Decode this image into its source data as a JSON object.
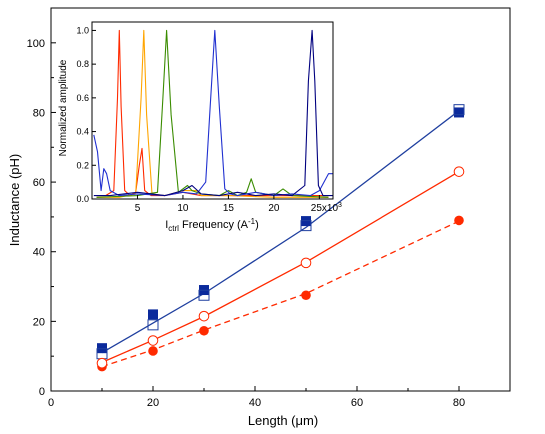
{
  "chart_data": [
    {
      "type": "scatter",
      "xlabel_main": "Length (",
      "xlabel_mu": "μ",
      "xlabel_end": "m)",
      "ylabel": "Inductance (pH)",
      "xlim": [
        0,
        90
      ],
      "ylim": [
        0,
        110
      ],
      "xticks": [
        "0",
        "20",
        "40",
        "60",
        "80"
      ],
      "yticks": [
        "0",
        "20",
        "40",
        "60",
        "80",
        "100"
      ],
      "colors": {
        "blue": "#1f3f9f",
        "navy": "#00007f",
        "red": "#ff2a00"
      },
      "series": [
        {
          "marker": "filled-square",
          "color": "#0b2a9c",
          "x": [
            10,
            20,
            30,
            50,
            80
          ],
          "y": [
            12.3,
            22.0,
            29.0,
            48.8,
            80.0
          ]
        },
        {
          "marker": "open-square",
          "color": "#1f3f9f",
          "fit": "solid",
          "x": [
            10,
            20,
            30,
            50,
            80
          ],
          "y": [
            10.7,
            19.0,
            27.5,
            47.5,
            80.8
          ]
        },
        {
          "marker": "open-circle",
          "color": "#ff2a00",
          "fit": "solid",
          "x": [
            10,
            20,
            30,
            50,
            80
          ],
          "y": [
            8.0,
            14.5,
            21.5,
            36.8,
            63.0
          ]
        },
        {
          "marker": "filled-circle",
          "color": "#ff2a00",
          "fit": "dashed",
          "x": [
            10,
            20,
            30,
            50,
            80
          ],
          "y": [
            7.0,
            11.5,
            17.3,
            27.5,
            49.0
          ]
        }
      ],
      "fit_lines": [
        {
          "color": "#1f3f9f",
          "style": "solid",
          "x": [
            10,
            20,
            30,
            50,
            80
          ],
          "y": [
            11.0,
            19.5,
            28.0,
            47.0,
            80.5
          ]
        },
        {
          "color": "#ff2a00",
          "style": "solid",
          "x": [
            10,
            20,
            30,
            50,
            80
          ],
          "y": [
            8.2,
            14.6,
            21.4,
            37.0,
            63.0
          ]
        },
        {
          "color": "#ff2a00",
          "style": "dashed",
          "x": [
            10,
            20,
            30,
            50,
            80
          ],
          "y": [
            7.0,
            11.8,
            17.5,
            28.0,
            48.8
          ]
        }
      ]
    },
    {
      "type": "line",
      "ylabel": "Normalized amplitude",
      "xlabel_pre": "I",
      "xlabel_sub": "ctrl",
      "xlabel_mid": " Frequency (A",
      "xlabel_sup": "-1",
      "xlabel_end": ")",
      "xlim": [
        0,
        26.5
      ],
      "ylim": [
        0,
        1.05
      ],
      "xticks": [
        "5",
        "10",
        "15",
        "20",
        "25x10"
      ],
      "xtick_sup": "3",
      "yticks": [
        "0.0",
        "0.2",
        "0.4",
        "0.6",
        "0.8",
        "1.0"
      ],
      "series": [
        {
          "color": "#ff2a00",
          "x": [
            0.5,
            1.5,
            2.4,
            2.8,
            3.0,
            3.2,
            3.6,
            4.2,
            4.8,
            5.2,
            5.5,
            5.8,
            6.5,
            8,
            10,
            12,
            15,
            20,
            26
          ],
          "y": [
            0.02,
            0.02,
            0.05,
            0.6,
            1.0,
            0.55,
            0.05,
            0.02,
            0.04,
            0.2,
            0.3,
            0.05,
            0.02,
            0.02,
            0.04,
            0.02,
            0.02,
            0.02,
            0.02
          ]
        },
        {
          "color": "#ffa500",
          "x": [
            0.5,
            3,
            4.8,
            5.4,
            5.7,
            6.0,
            6.6,
            8,
            10,
            11.5,
            12,
            15,
            20,
            26
          ],
          "y": [
            0.01,
            0.01,
            0.03,
            0.6,
            1.0,
            0.5,
            0.03,
            0.02,
            0.05,
            0.05,
            0.02,
            0.02,
            0.01,
            0.01
          ]
        },
        {
          "color": "#3a8c00",
          "x": [
            0.5,
            5,
            7.2,
            7.8,
            8.2,
            8.7,
            9.5,
            10.5,
            11,
            12,
            14,
            15,
            16,
            17,
            17.5,
            18,
            20,
            21,
            22,
            26
          ],
          "y": [
            0.01,
            0.02,
            0.04,
            0.6,
            1.0,
            0.5,
            0.04,
            0.08,
            0.05,
            0.03,
            0.02,
            0.05,
            0.02,
            0.04,
            0.12,
            0.04,
            0.02,
            0.06,
            0.02,
            0.01
          ]
        },
        {
          "color": "#2030d0",
          "x": [
            0.2,
            0.6,
            1.0,
            1.3,
            1.6,
            2.0,
            3,
            5,
            8,
            10,
            11.5,
            12.5,
            13.0,
            13.5,
            14.0,
            14.6,
            15.2,
            16,
            18,
            20,
            22,
            24,
            25,
            26,
            26.5
          ],
          "y": [
            0.38,
            0.28,
            0.05,
            0.18,
            0.15,
            0.05,
            0.02,
            0.03,
            0.02,
            0.04,
            0.03,
            0.1,
            0.55,
            1.0,
            0.55,
            0.06,
            0.03,
            0.02,
            0.04,
            0.02,
            0.03,
            0.02,
            0.05,
            0.15,
            0.15
          ]
        },
        {
          "color": "#00007f",
          "x": [
            0.2,
            2,
            5,
            8,
            10,
            11,
            12,
            14,
            16,
            18,
            20,
            22,
            23.4,
            23.8,
            24.2,
            24.5,
            24.9,
            25.4,
            26,
            26.5
          ],
          "y": [
            0.02,
            0.02,
            0.04,
            0.02,
            0.05,
            0.08,
            0.03,
            0.02,
            0.04,
            0.02,
            0.03,
            0.02,
            0.08,
            0.7,
            1.0,
            0.7,
            0.08,
            0.02,
            0.02,
            0.02
          ]
        }
      ]
    }
  ]
}
